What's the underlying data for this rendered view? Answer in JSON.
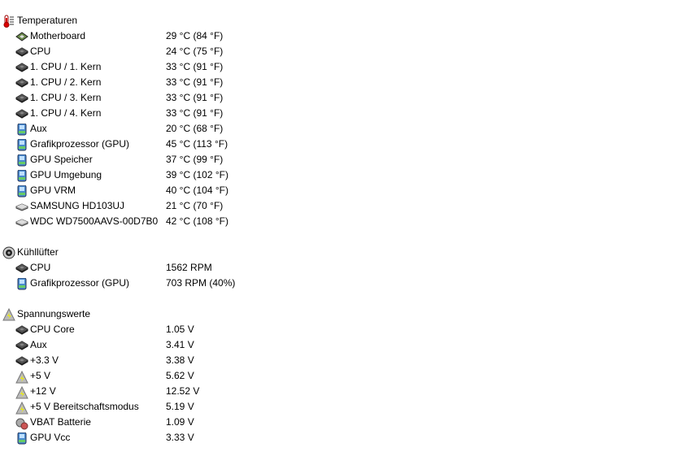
{
  "sections": [
    {
      "title": "Temperaturen",
      "icon": "thermometer-icon",
      "items": [
        {
          "label": "Motherboard",
          "value": "29 °C  (84 °F)",
          "icon": "motherboard-icon"
        },
        {
          "label": "CPU",
          "value": "24 °C  (75 °F)",
          "icon": "cpu-icon"
        },
        {
          "label": "1. CPU / 1. Kern",
          "value": "33 °C  (91 °F)",
          "icon": "cpu-icon"
        },
        {
          "label": "1. CPU / 2. Kern",
          "value": "33 °C  (91 °F)",
          "icon": "cpu-icon"
        },
        {
          "label": "1. CPU / 3. Kern",
          "value": "33 °C  (91 °F)",
          "icon": "cpu-icon"
        },
        {
          "label": "1. CPU / 4. Kern",
          "value": "33 °C  (91 °F)",
          "icon": "cpu-icon"
        },
        {
          "label": "Aux",
          "value": "20 °C  (68 °F)",
          "icon": "gpu-icon"
        },
        {
          "label": "Grafikprozessor (GPU)",
          "value": "45 °C  (113 °F)",
          "icon": "gpu-icon"
        },
        {
          "label": "GPU Speicher",
          "value": "37 °C  (99 °F)",
          "icon": "gpu-icon"
        },
        {
          "label": "GPU Umgebung",
          "value": "39 °C  (102 °F)",
          "icon": "gpu-icon"
        },
        {
          "label": "GPU VRM",
          "value": "40 °C  (104 °F)",
          "icon": "gpu-icon"
        },
        {
          "label": "SAMSUNG HD103UJ",
          "value": "21 °C  (70 °F)",
          "icon": "hard-drive-icon"
        },
        {
          "label": "WDC WD7500AAVS-00D7B0",
          "value": "42 °C  (108 °F)",
          "icon": "hard-drive-icon"
        }
      ]
    },
    {
      "title": "Kühllüfter",
      "icon": "fan-icon",
      "items": [
        {
          "label": "CPU",
          "value": "1562 RPM",
          "icon": "cpu-icon"
        },
        {
          "label": "Grafikprozessor (GPU)",
          "value": "703 RPM  (40%)",
          "icon": "gpu-icon"
        }
      ]
    },
    {
      "title": "Spannungswerte",
      "icon": "voltage-icon",
      "items": [
        {
          "label": "CPU Core",
          "value": "1.05 V",
          "icon": "cpu-icon"
        },
        {
          "label": "Aux",
          "value": "3.41 V",
          "icon": "cpu-icon"
        },
        {
          "label": "+3.3 V",
          "value": "3.38 V",
          "icon": "cpu-icon"
        },
        {
          "label": "+5 V",
          "value": "5.62 V",
          "icon": "voltage-icon"
        },
        {
          "label": "+12 V",
          "value": "12.52 V",
          "icon": "voltage-icon"
        },
        {
          "label": "+5 V Bereitschaftsmodus",
          "value": "5.19 V",
          "icon": "voltage-icon"
        },
        {
          "label": "VBAT Batterie",
          "value": "1.09 V",
          "icon": "battery-icon"
        },
        {
          "label": "GPU Vcc",
          "value": "3.33 V",
          "icon": "gpu-icon"
        }
      ]
    }
  ]
}
